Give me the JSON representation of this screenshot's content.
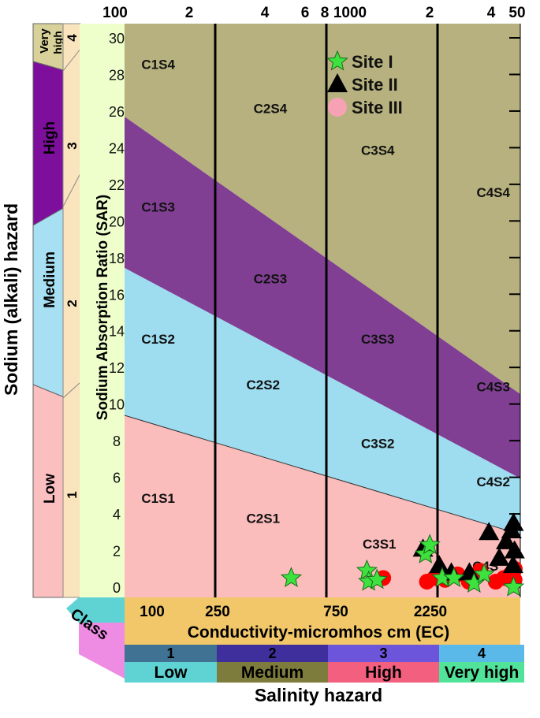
{
  "chart_data": {
    "type": "scatter",
    "title": "",
    "ylabel": "Sodium Absorption Ratio (SAR)",
    "xlabel": "Conductivity-micromhos cm (EC)",
    "ylim": [
      0,
      30
    ],
    "xscale": "log",
    "xlim": [
      100,
      5000
    ],
    "y_ticks": [
      "0",
      "2",
      "4",
      "6",
      "8",
      "10",
      "12",
      "14",
      "16",
      "18",
      "20",
      "22",
      "24",
      "26",
      "28",
      "30"
    ],
    "x_top_ticks": [
      {
        "x": 100,
        "label": "100"
      },
      {
        "x": 200,
        "label": "2"
      },
      {
        "x": 400,
        "label": "4"
      },
      {
        "x": 600,
        "label": "6"
      },
      {
        "x": 800,
        "label": "8"
      },
      {
        "x": 1000,
        "label": "1000"
      },
      {
        "x": 2000,
        "label": "2"
      },
      {
        "x": 4000,
        "label": "4"
      },
      {
        "x": 5000,
        "label": "50"
      }
    ],
    "x_bottom_ticks": [
      {
        "x": 100,
        "label": "100"
      },
      {
        "x": 250,
        "label": "250"
      },
      {
        "x": 750,
        "label": "750"
      },
      {
        "x": 2250,
        "label": "2250"
      }
    ],
    "ec_boundaries": [
      250,
      750,
      2250
    ],
    "zone_labels": [
      {
        "label": "C1S4",
        "x": 140,
        "y": 28.3
      },
      {
        "label": "C2S4",
        "x": 430,
        "y": 25.9
      },
      {
        "label": "C3S4",
        "x": 1260,
        "y": 23.6
      },
      {
        "label": "C4S4",
        "x": 4000,
        "y": 21.3
      },
      {
        "label": "C1S3",
        "x": 140,
        "y": 20.5
      },
      {
        "label": "C2S3",
        "x": 430,
        "y": 16.6
      },
      {
        "label": "C3S3",
        "x": 1260,
        "y": 13.3
      },
      {
        "label": "C4S3",
        "x": 4000,
        "y": 10.7
      },
      {
        "label": "C1S2",
        "x": 140,
        "y": 13.3
      },
      {
        "label": "C2S2",
        "x": 400,
        "y": 10.8
      },
      {
        "label": "C3S2",
        "x": 1260,
        "y": 7.6
      },
      {
        "label": "C4S2",
        "x": 4000,
        "y": 5.5
      },
      {
        "label": "C1S1",
        "x": 140,
        "y": 4.6
      },
      {
        "label": "C2S1",
        "x": 400,
        "y": 3.5
      },
      {
        "label": "C3S1",
        "x": 1280,
        "y": 2.1
      },
      {
        "label": "C4S",
        "x": 3700,
        "y": 0.9
      }
    ],
    "legend_position": "top-center",
    "series": [
      {
        "name": "Site I",
        "marker": "star",
        "color": "#3ee23e",
        "points": [
          [
            530,
            0.5
          ],
          [
            1130,
            0.9
          ],
          [
            1150,
            0.3
          ],
          [
            1250,
            0.4
          ],
          [
            2030,
            1.8
          ],
          [
            2120,
            2.3
          ],
          [
            2400,
            0.5
          ],
          [
            2700,
            0.5
          ],
          [
            3300,
            0.2
          ],
          [
            3650,
            0.7
          ],
          [
            4900,
            0.0
          ]
        ]
      },
      {
        "name": "Site II",
        "marker": "triangle",
        "color": "#000000",
        "points": [
          [
            1980,
            2.1
          ],
          [
            2330,
            1.2
          ],
          [
            2630,
            0.8
          ],
          [
            3150,
            0.8
          ],
          [
            3830,
            3.0
          ],
          [
            4250,
            1.6
          ],
          [
            4550,
            2.5
          ],
          [
            4800,
            3.1
          ],
          [
            4900,
            3.5
          ],
          [
            4950,
            2.0
          ],
          [
            4880,
            1.2
          ]
        ]
      },
      {
        "name": "Site III",
        "marker": "circle",
        "color": "#ff0000",
        "points": [
          [
            1330,
            0.5
          ],
          [
            2060,
            0.3
          ],
          [
            2220,
            0.5
          ],
          [
            2470,
            0.4
          ],
          [
            2800,
            0.7
          ],
          [
            3130,
            0.3
          ],
          [
            3500,
            0.9
          ],
          [
            4100,
            0.3
          ],
          [
            4450,
            0.5
          ],
          [
            4750,
            0.7
          ],
          [
            4950,
            0.4
          ],
          [
            4960,
            1.0
          ]
        ]
      }
    ],
    "colors": {
      "s4_zone": "#b6b17e",
      "s3_zone": "#813f94",
      "s2_zone": "#9edcf0",
      "s1_zone": "#fbbdbc"
    }
  },
  "sodium_hazard": {
    "title": "Sodium (alkali) hazard",
    "levels": [
      {
        "label": "Very high",
        "line1": "Very",
        "line2": "high",
        "number": "4",
        "color": "#d8d29a"
      },
      {
        "label": "High",
        "number": "3",
        "color": "#7e0f9d"
      },
      {
        "label": "Medium",
        "number": "2",
        "color": "#a8e0f3"
      },
      {
        "label": "Low",
        "number": "1",
        "color": "#fbbfc0"
      }
    ]
  },
  "salinity_hazard": {
    "title": "Salinity hazard",
    "class_label": "Class",
    "classes": [
      {
        "number": "1",
        "label": "Low",
        "number_color": "#3f7293",
        "label_color": "#5fd3d4"
      },
      {
        "number": "2",
        "label": "Medium",
        "number_color": "#3f2f9d",
        "label_color": "#7e7c3c"
      },
      {
        "number": "3",
        "label": "High",
        "number_color": "#6c54db",
        "label_color": "#f35f7f"
      },
      {
        "number": "4",
        "label": "Very high",
        "number_color": "#5ab9e8",
        "label_color": "#52e39a"
      }
    ]
  }
}
